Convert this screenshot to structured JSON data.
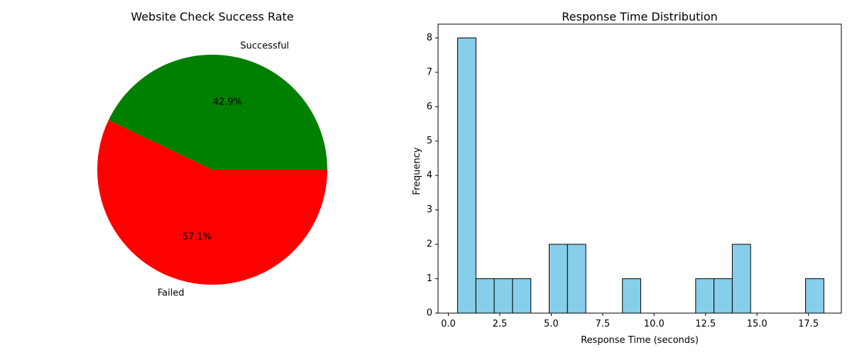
{
  "chart_data": [
    {
      "type": "pie",
      "title": "Website Check Success Rate",
      "slices": [
        {
          "label": "Successful",
          "value": 42.9,
          "pct_label": "42.9%",
          "color": "#008000"
        },
        {
          "label": "Failed",
          "value": 57.1,
          "pct_label": "57.1%",
          "color": "#ff0000"
        }
      ]
    },
    {
      "type": "bar",
      "subtype": "histogram",
      "title": "Response Time Distribution",
      "xlabel": "Response Time (seconds)",
      "ylabel": "Frequency",
      "xlim": [
        -0.5,
        19.1
      ],
      "ylim": [
        0,
        8.4
      ],
      "bin_start": 0.45,
      "bin_width": 0.89,
      "counts": [
        8,
        1,
        1,
        1,
        0,
        2,
        2,
        0,
        0,
        1,
        0,
        0,
        0,
        1,
        1,
        2,
        0,
        0,
        0,
        1
      ],
      "bar_color": "#87ceeb",
      "edge_color": "#000000",
      "xticks": [
        0.0,
        2.5,
        5.0,
        7.5,
        10.0,
        12.5,
        15.0,
        17.5
      ],
      "xtick_labels": [
        "0.0",
        "2.5",
        "5.0",
        "7.5",
        "10.0",
        "12.5",
        "15.0",
        "17.5"
      ],
      "yticks": [
        0,
        1,
        2,
        3,
        4,
        5,
        6,
        7,
        8
      ],
      "ytick_labels": [
        "0",
        "1",
        "2",
        "3",
        "4",
        "5",
        "6",
        "7",
        "8"
      ],
      "grid": false
    }
  ]
}
